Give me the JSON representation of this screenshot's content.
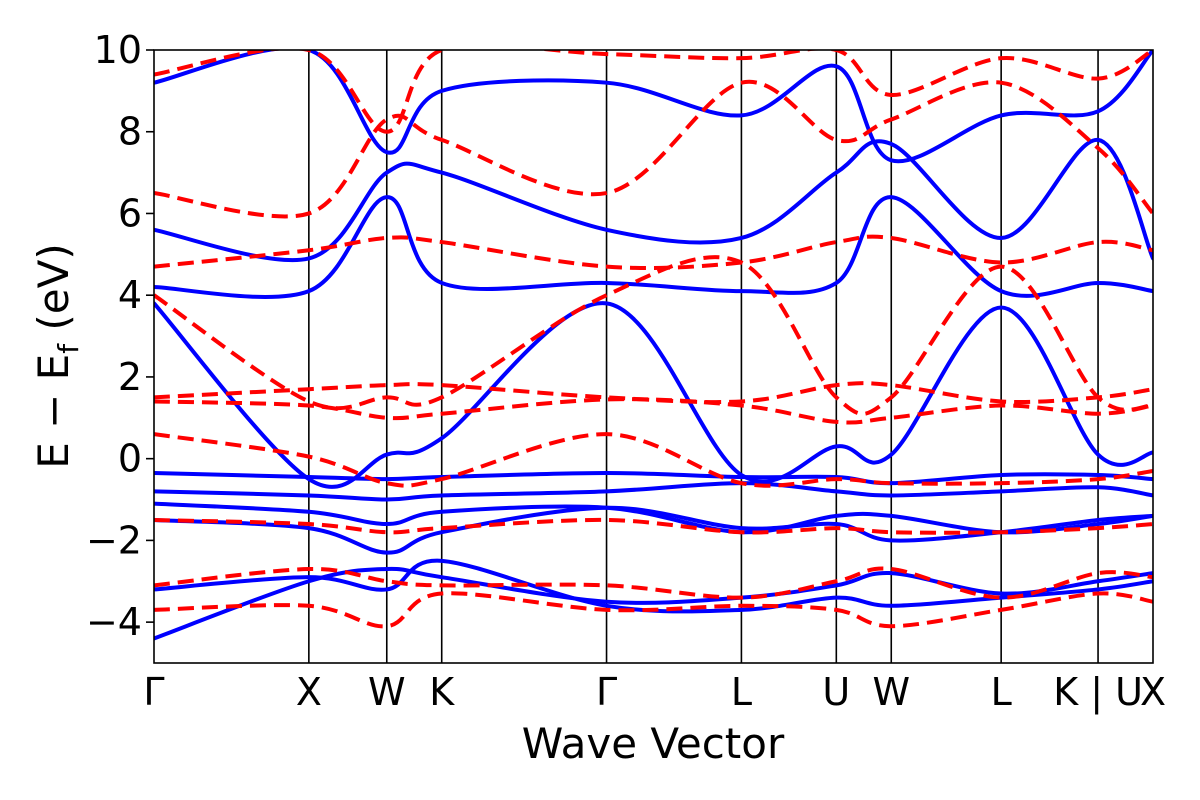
{
  "chart_data": {
    "type": "line",
    "xlabel": "Wave Vector",
    "ylabel_parts": {
      "main": "E − E",
      "subscript": "f",
      "unit": " (eV)"
    },
    "ylim": [
      -5,
      10
    ],
    "yticks": [
      -4,
      -2,
      0,
      2,
      4,
      6,
      8,
      10
    ],
    "ytick_labels": [
      "−4",
      "−2",
      "0",
      "2",
      "4",
      "6",
      "8",
      "10"
    ],
    "xlim": [
      0,
      1
    ],
    "kpoints": [
      {
        "label": "Γ",
        "x": 0.0
      },
      {
        "label": "X",
        "x": 0.155
      },
      {
        "label": "W",
        "x": 0.233
      },
      {
        "label": "K",
        "x": 0.288
      },
      {
        "label": "Γ",
        "x": 0.453
      },
      {
        "label": "L",
        "x": 0.588
      },
      {
        "label": "U",
        "x": 0.683
      },
      {
        "label": "W",
        "x": 0.738
      },
      {
        "label": "L",
        "x": 0.848
      },
      {
        "label": "K | U",
        "x": 0.945
      },
      {
        "label": "X",
        "x": 1.0
      }
    ],
    "series": [
      {
        "style": "solid",
        "color": "#0000ff",
        "bands": [
          {
            "x": [
              0,
              0.155,
              0.233,
              0.288,
              0.453,
              0.588,
              0.683,
              0.738,
              0.848,
              0.945,
              1
            ],
            "y": [
              -4.4,
              -3.0,
              -2.7,
              -2.9,
              -3.5,
              -3.4,
              -3.1,
              -2.8,
              -3.3,
              -3.0,
              -2.8
            ]
          },
          {
            "x": [
              0,
              0.155,
              0.233,
              0.288,
              0.453,
              0.588,
              0.683,
              0.738,
              0.848,
              0.945,
              1
            ],
            "y": [
              -3.2,
              -2.9,
              -3.2,
              -2.5,
              -3.6,
              -3.7,
              -3.4,
              -3.6,
              -3.4,
              -3.2,
              -3.0
            ]
          },
          {
            "x": [
              0,
              0.155,
              0.233,
              0.288,
              0.453,
              0.588,
              0.683,
              0.738,
              0.848,
              0.945,
              1
            ],
            "y": [
              -1.5,
              -1.7,
              -2.3,
              -1.8,
              -1.2,
              -1.7,
              -1.6,
              -2.0,
              -1.8,
              -1.5,
              -1.4
            ]
          },
          {
            "x": [
              0,
              0.155,
              0.233,
              0.288,
              0.453,
              0.588,
              0.683,
              0.738,
              0.848,
              0.945,
              1
            ],
            "y": [
              -1.1,
              -1.3,
              -1.6,
              -1.3,
              -1.2,
              -1.8,
              -1.4,
              -1.4,
              -1.8,
              -1.6,
              -1.4
            ]
          },
          {
            "x": [
              0,
              0.155,
              0.233,
              0.288,
              0.453,
              0.588,
              0.683,
              0.738,
              0.848,
              0.945,
              1
            ],
            "y": [
              -0.8,
              -0.9,
              -1.0,
              -0.9,
              -0.8,
              -0.6,
              -0.8,
              -0.9,
              -0.8,
              -0.7,
              -0.9
            ]
          },
          {
            "x": [
              0,
              0.155,
              0.233,
              0.288,
              0.453,
              0.588,
              0.683,
              0.738,
              0.848,
              0.945,
              1
            ],
            "y": [
              -0.35,
              -0.45,
              -0.5,
              -0.45,
              -0.35,
              -0.45,
              -0.45,
              -0.6,
              -0.4,
              -0.4,
              -0.5
            ]
          },
          {
            "x": [
              0,
              0.155,
              0.233,
              0.288,
              0.453,
              0.588,
              0.683,
              0.738,
              0.848,
              0.945,
              1
            ],
            "y": [
              3.8,
              -0.5,
              0.1,
              0.5,
              3.8,
              -0.4,
              0.3,
              0.1,
              3.7,
              0.1,
              0.15
            ]
          },
          {
            "x": [
              0,
              0.155,
              0.233,
              0.288,
              0.453,
              0.588,
              0.683,
              0.738,
              0.848,
              0.945,
              1
            ],
            "y": [
              4.2,
              4.1,
              6.4,
              4.3,
              4.3,
              4.1,
              4.3,
              6.4,
              4.1,
              4.3,
              4.1
            ]
          },
          {
            "x": [
              0,
              0.155,
              0.233,
              0.288,
              0.453,
              0.588,
              0.683,
              0.738,
              0.848,
              0.945,
              1
            ],
            "y": [
              5.6,
              4.9,
              7.0,
              7.0,
              5.6,
              5.4,
              7.0,
              7.7,
              5.4,
              7.8,
              4.9
            ]
          },
          {
            "x": [
              0,
              0.155,
              0.233,
              0.288,
              0.453,
              0.588,
              0.683,
              0.738,
              0.848,
              0.945,
              1
            ],
            "y": [
              9.2,
              10.0,
              7.5,
              9.0,
              9.2,
              8.4,
              9.6,
              7.3,
              8.4,
              8.5,
              10.0
            ]
          }
        ]
      },
      {
        "style": "dashed",
        "color": "#ff0000",
        "bands": [
          {
            "x": [
              0,
              0.155,
              0.233,
              0.288,
              0.453,
              0.588,
              0.683,
              0.738,
              0.848,
              0.945,
              1
            ],
            "y": [
              -3.7,
              -3.6,
              -4.1,
              -3.3,
              -3.7,
              -3.6,
              -3.7,
              -4.1,
              -3.7,
              -3.3,
              -3.5
            ]
          },
          {
            "x": [
              0,
              0.155,
              0.233,
              0.288,
              0.453,
              0.588,
              0.683,
              0.738,
              0.848,
              0.945,
              1
            ],
            "y": [
              -3.1,
              -2.7,
              -3.0,
              -3.1,
              -3.1,
              -3.4,
              -3.0,
              -2.7,
              -3.4,
              -2.8,
              -2.9
            ]
          },
          {
            "x": [
              0,
              0.155,
              0.233,
              0.288,
              0.453,
              0.588,
              0.683,
              0.738,
              0.848,
              0.945,
              1
            ],
            "y": [
              -1.5,
              -1.6,
              -1.8,
              -1.7,
              -1.5,
              -1.8,
              -1.7,
              -1.8,
              -1.8,
              -1.7,
              -1.6
            ]
          },
          {
            "x": [
              0,
              0.155,
              0.233,
              0.288,
              0.453,
              0.588,
              0.683,
              0.738,
              0.848,
              0.945,
              1
            ],
            "y": [
              0.6,
              0.05,
              -0.6,
              -0.5,
              0.6,
              -0.6,
              -0.5,
              -0.6,
              -0.6,
              -0.5,
              -0.3
            ]
          },
          {
            "x": [
              0,
              0.155,
              0.233,
              0.288,
              0.453,
              0.588,
              0.683,
              0.738,
              0.848,
              0.945,
              1
            ],
            "y": [
              1.4,
              1.3,
              1.0,
              1.1,
              1.45,
              1.3,
              0.9,
              1.0,
              1.3,
              1.1,
              1.3
            ]
          },
          {
            "x": [
              0,
              0.155,
              0.233,
              0.288,
              0.453,
              0.588,
              0.683,
              0.738,
              0.848,
              0.945,
              1
            ],
            "y": [
              1.5,
              1.7,
              1.8,
              1.8,
              1.5,
              1.4,
              1.8,
              1.8,
              1.4,
              1.5,
              1.7
            ]
          },
          {
            "x": [
              0,
              0.155,
              0.233,
              0.288,
              0.453,
              0.588,
              0.683,
              0.738,
              0.848,
              0.945,
              1
            ],
            "y": [
              4.0,
              1.4,
              1.5,
              1.5,
              4.0,
              4.8,
              1.5,
              1.5,
              4.7,
              1.5,
              1.3
            ]
          },
          {
            "x": [
              0,
              0.155,
              0.233,
              0.288,
              0.453,
              0.588,
              0.683,
              0.738,
              0.848,
              0.945,
              1
            ],
            "y": [
              4.7,
              5.1,
              5.4,
              5.3,
              4.7,
              4.8,
              5.3,
              5.4,
              4.8,
              5.3,
              5.1
            ]
          },
          {
            "x": [
              0,
              0.155,
              0.233,
              0.288,
              0.453,
              0.588,
              0.683,
              0.738,
              0.848,
              0.945,
              1
            ],
            "y": [
              6.5,
              6.0,
              8.3,
              7.8,
              6.5,
              9.2,
              7.8,
              8.3,
              9.2,
              7.6,
              6.0
            ]
          },
          {
            "x": [
              0,
              0.155,
              0.233,
              0.288,
              0.453,
              0.588,
              0.683,
              0.738,
              0.848,
              0.945,
              1
            ],
            "y": [
              9.4,
              10.0,
              8.0,
              10.0,
              9.9,
              9.8,
              10.0,
              8.9,
              9.8,
              9.3,
              10.0
            ]
          }
        ]
      }
    ]
  }
}
